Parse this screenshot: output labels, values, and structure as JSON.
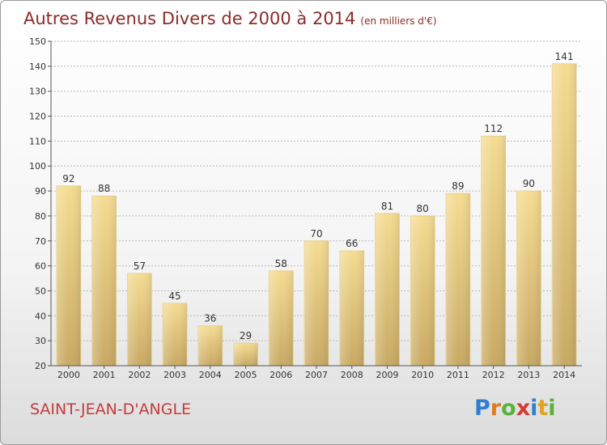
{
  "title": "Autres Revenus Divers de 2000 à 2014",
  "subtitle": "(en milliers d'€)",
  "commune": "SAINT-JEAN-D'ANGLE",
  "logo": {
    "letters": [
      {
        "char": "P",
        "color": "#2f7fd1"
      },
      {
        "char": "r",
        "color": "#e07a1f"
      },
      {
        "char": "o",
        "color": "#58b23b"
      },
      {
        "char": "x",
        "color": "#d43a2f"
      },
      {
        "char": "i",
        "color": "#2f7fd1"
      },
      {
        "char": "t",
        "color": "#e0a21f"
      },
      {
        "char": "i",
        "color": "#58b23b"
      }
    ]
  },
  "colors": {
    "bar_top": "#f5dc92",
    "bar_bottom": "#c8a964",
    "title": "#8a2b2b",
    "commune": "#c33c3c"
  },
  "chart_data": {
    "type": "bar",
    "title": "Autres Revenus Divers de 2000 à 2014",
    "subtitle": "(en milliers d'€)",
    "categories": [
      "2000",
      "2001",
      "2002",
      "2003",
      "2004",
      "2005",
      "2006",
      "2007",
      "2008",
      "2009",
      "2010",
      "2011",
      "2012",
      "2013",
      "2014"
    ],
    "values": [
      92,
      88,
      57,
      45,
      36,
      29,
      58,
      70,
      66,
      81,
      80,
      89,
      112,
      90,
      141
    ],
    "ylim": [
      20,
      150
    ],
    "yticks": [
      20,
      30,
      40,
      50,
      60,
      70,
      80,
      90,
      100,
      110,
      120,
      130,
      140,
      150
    ],
    "grid": true,
    "xlabel": "",
    "ylabel": ""
  }
}
